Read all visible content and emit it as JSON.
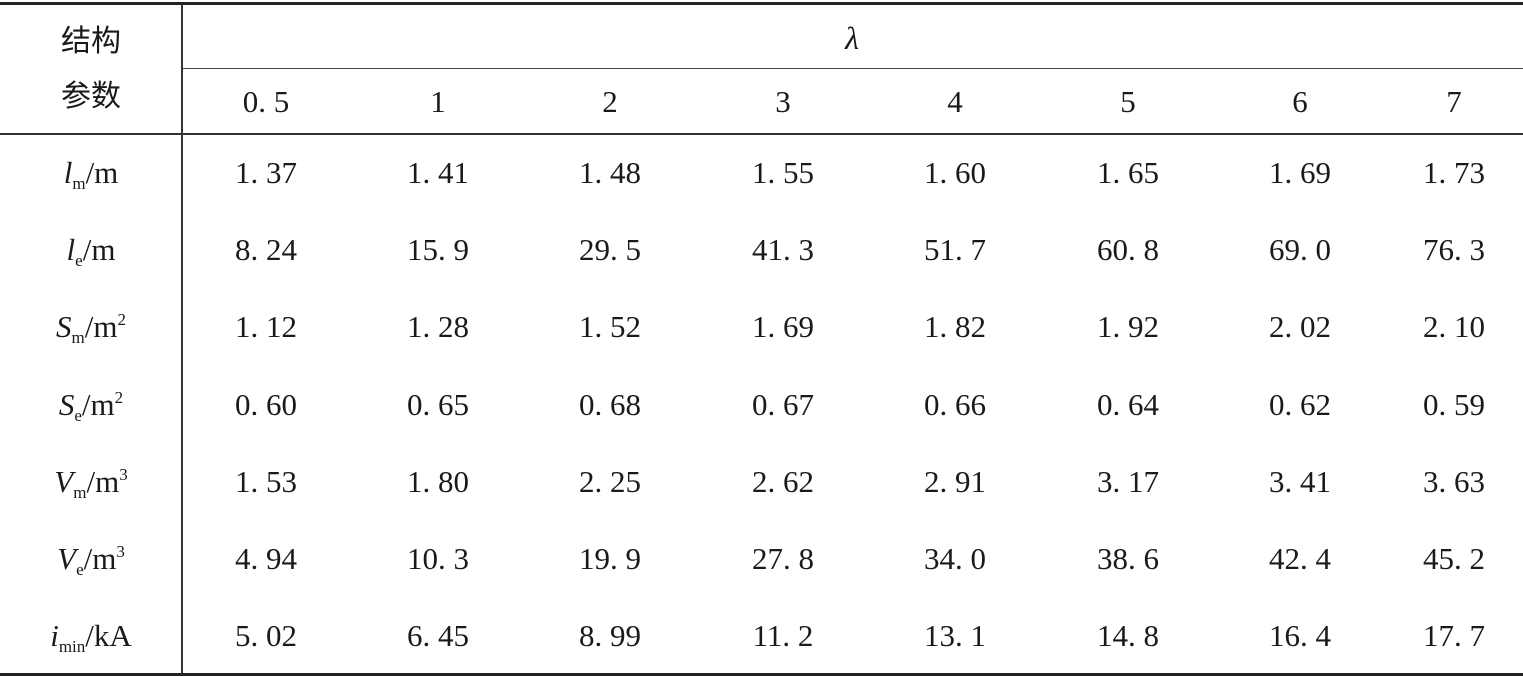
{
  "table": {
    "row_header_line1": "结构",
    "row_header_line2": "参数",
    "group_header": "λ",
    "columns": [
      "0. 5",
      "1",
      "2",
      "3",
      "4",
      "5",
      "6",
      "7"
    ],
    "rows": [
      {
        "sym": "l",
        "sub": "m",
        "unit": "/m",
        "sup": "",
        "values": [
          "1. 37",
          "1. 41",
          "1. 48",
          "1. 55",
          "1. 60",
          "1. 65",
          "1. 69",
          "1. 73"
        ]
      },
      {
        "sym": "l",
        "sub": "e",
        "unit": "/m",
        "sup": "",
        "values": [
          "8. 24",
          "15. 9",
          "29. 5",
          "41. 3",
          "51. 7",
          "60. 8",
          "69. 0",
          "76. 3"
        ]
      },
      {
        "sym": "S",
        "sub": "m",
        "unit": "/m",
        "sup": "2",
        "values": [
          "1. 12",
          "1. 28",
          "1. 52",
          "1. 69",
          "1. 82",
          "1. 92",
          "2. 02",
          "2. 10"
        ]
      },
      {
        "sym": "S",
        "sub": "e",
        "unit": "/m",
        "sup": "2",
        "values": [
          "0. 60",
          "0. 65",
          "0. 68",
          "0. 67",
          "0. 66",
          "0. 64",
          "0. 62",
          "0. 59"
        ]
      },
      {
        "sym": "V",
        "sub": "m",
        "unit": "/m",
        "sup": "3",
        "values": [
          "1. 53",
          "1. 80",
          "2. 25",
          "2. 62",
          "2. 91",
          "3. 17",
          "3. 41",
          "3. 63"
        ]
      },
      {
        "sym": "V",
        "sub": "e",
        "unit": "/m",
        "sup": "3",
        "values": [
          "4. 94",
          "10. 3",
          "19. 9",
          "27. 8",
          "34. 0",
          "38. 6",
          "42. 4",
          "45. 2"
        ]
      },
      {
        "sym": "i",
        "sub": "min",
        "unit": "/kA",
        "sup": "",
        "values": [
          "5. 02",
          "6. 45",
          "8. 99",
          "11. 2",
          "13. 1",
          "14. 8",
          "16. 4",
          "17. 7"
        ]
      }
    ]
  }
}
